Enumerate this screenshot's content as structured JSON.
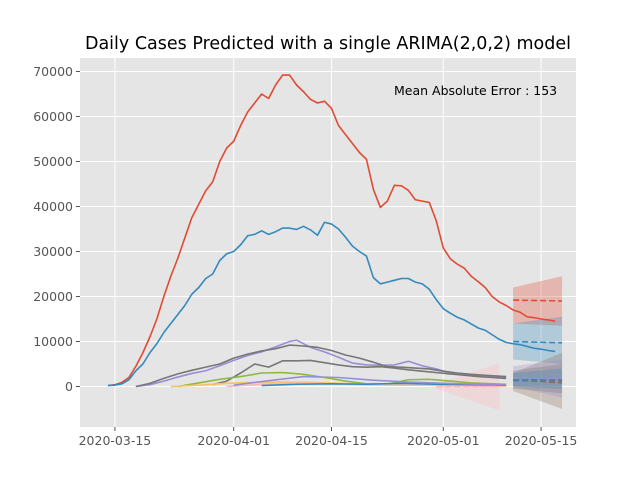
{
  "chart_data": {
    "type": "line",
    "title": "Daily Cases Predicted with a single ARIMA(2,0,2) model",
    "annotation": "Mean Absolute Error : 153",
    "xlabel": "",
    "ylabel": "",
    "x_ticks": [
      "2020-03-15",
      "2020-04-01",
      "2020-04-15",
      "2020-05-01",
      "2020-05-15"
    ],
    "y_ticks": [
      0,
      10000,
      20000,
      30000,
      40000,
      50000,
      60000,
      70000
    ],
    "x_range": [
      "2020-03-10",
      "2020-05-20"
    ],
    "ylim": [
      -9000,
      73000
    ],
    "grid": true,
    "legend": "none",
    "colors": {
      "background": "#e5e5e5",
      "grid": "#ffffff",
      "red": "#e24a33",
      "blue": "#348abd",
      "purple": "#988ed5",
      "gray": "#777777",
      "yellow": "#fbc15e",
      "green": "#8eba42",
      "pink": "#ffb5b8",
      "brown": "#8b6f5a"
    },
    "series": [
      {
        "color": "red",
        "x": [
          "2020-03-14",
          "2020-03-15",
          "2020-03-16",
          "2020-03-17",
          "2020-03-18",
          "2020-03-19",
          "2020-03-20",
          "2020-03-21",
          "2020-03-22",
          "2020-03-23",
          "2020-03-24",
          "2020-03-25",
          "2020-03-26",
          "2020-03-27",
          "2020-03-28",
          "2020-03-29",
          "2020-03-30",
          "2020-03-31",
          "2020-04-01",
          "2020-04-02",
          "2020-04-03",
          "2020-04-04",
          "2020-04-05",
          "2020-04-06",
          "2020-04-07",
          "2020-04-08",
          "2020-04-09",
          "2020-04-10",
          "2020-04-11",
          "2020-04-12",
          "2020-04-13",
          "2020-04-14",
          "2020-04-15",
          "2020-04-16",
          "2020-04-17",
          "2020-04-18",
          "2020-04-19",
          "2020-04-20",
          "2020-04-21",
          "2020-04-22",
          "2020-04-23",
          "2020-04-24",
          "2020-04-25",
          "2020-04-26",
          "2020-04-27",
          "2020-04-28",
          "2020-04-29",
          "2020-04-30",
          "2020-05-01",
          "2020-05-02",
          "2020-05-03",
          "2020-05-04",
          "2020-05-05",
          "2020-05-06",
          "2020-05-07",
          "2020-05-08",
          "2020-05-09",
          "2020-05-10",
          "2020-05-11",
          "2020-05-12",
          "2020-05-13",
          "2020-05-14",
          "2020-05-15",
          "2020-05-16",
          "2020-05-17"
        ],
        "y": [
          200,
          400,
          900,
          2000,
          4500,
          7500,
          11000,
          15000,
          20000,
          24500,
          28500,
          33000,
          37500,
          40500,
          43500,
          45500,
          50000,
          53000,
          54500,
          58000,
          61000,
          63000,
          65000,
          64000,
          67000,
          69200,
          69200,
          67000,
          65500,
          63800,
          63000,
          63400,
          61800,
          58000,
          56000,
          54000,
          52000,
          50500,
          43800,
          39800,
          41200,
          44700,
          44600,
          43600,
          41500,
          41200,
          40900,
          36800,
          30800,
          28400,
          27200,
          26300,
          24500,
          23300,
          22000,
          20000,
          18800,
          18000,
          17000,
          16500,
          15500,
          15300,
          15000,
          14800,
          14500
        ]
      },
      {
        "color": "blue",
        "x": [
          "2020-03-14",
          "2020-03-15",
          "2020-03-16",
          "2020-03-17",
          "2020-03-18",
          "2020-03-19",
          "2020-03-20",
          "2020-03-21",
          "2020-03-22",
          "2020-03-23",
          "2020-03-24",
          "2020-03-25",
          "2020-03-26",
          "2020-03-27",
          "2020-03-28",
          "2020-03-29",
          "2020-03-30",
          "2020-03-31",
          "2020-04-01",
          "2020-04-02",
          "2020-04-03",
          "2020-04-04",
          "2020-04-05",
          "2020-04-06",
          "2020-04-07",
          "2020-04-08",
          "2020-04-09",
          "2020-04-10",
          "2020-04-11",
          "2020-04-12",
          "2020-04-13",
          "2020-04-14",
          "2020-04-15",
          "2020-04-16",
          "2020-04-17",
          "2020-04-18",
          "2020-04-19",
          "2020-04-20",
          "2020-04-21",
          "2020-04-22",
          "2020-04-23",
          "2020-04-24",
          "2020-04-25",
          "2020-04-26",
          "2020-04-27",
          "2020-04-28",
          "2020-04-29",
          "2020-04-30",
          "2020-05-01",
          "2020-05-02",
          "2020-05-03",
          "2020-05-04",
          "2020-05-05",
          "2020-05-06",
          "2020-05-07",
          "2020-05-08",
          "2020-05-09",
          "2020-05-10",
          "2020-05-11",
          "2020-05-12",
          "2020-05-13",
          "2020-05-14",
          "2020-05-15",
          "2020-05-16",
          "2020-05-17"
        ],
        "y": [
          200,
          300,
          600,
          1500,
          3500,
          5000,
          7500,
          9500,
          12000,
          14000,
          16000,
          18000,
          20500,
          22000,
          24000,
          25000,
          28000,
          29500,
          30000,
          31500,
          33500,
          33800,
          34600,
          33800,
          34400,
          35200,
          35200,
          34900,
          35600,
          34800,
          33600,
          36500,
          36100,
          35000,
          33200,
          31200,
          30000,
          29000,
          24200,
          22800,
          23200,
          23600,
          24000,
          24000,
          23200,
          22800,
          21600,
          19300,
          17300,
          16300,
          15400,
          14800,
          13900,
          13000,
          12500,
          11500,
          10500,
          9800,
          9500,
          9300,
          8900,
          8500,
          8300,
          8000,
          7800
        ]
      },
      {
        "color": "purple",
        "x": [
          "2020-03-18",
          "2020-03-20",
          "2020-03-22",
          "2020-03-24",
          "2020-03-26",
          "2020-03-28",
          "2020-03-30",
          "2020-04-01",
          "2020-04-03",
          "2020-04-05",
          "2020-04-07",
          "2020-04-09",
          "2020-04-10",
          "2020-04-12",
          "2020-04-14",
          "2020-04-16",
          "2020-04-18",
          "2020-04-20",
          "2020-04-22",
          "2020-04-24",
          "2020-04-26",
          "2020-04-28",
          "2020-04-30",
          "2020-05-02",
          "2020-05-04",
          "2020-05-06",
          "2020-05-08",
          "2020-05-10"
        ],
        "y": [
          0,
          400,
          1200,
          2100,
          2900,
          3500,
          4600,
          5800,
          6900,
          7700,
          8800,
          10000,
          10300,
          8700,
          7700,
          6500,
          5200,
          4800,
          4700,
          4800,
          5600,
          4600,
          3900,
          3000,
          2700,
          2400,
          2200,
          2100
        ]
      },
      {
        "color": "gray",
        "x": [
          "2020-03-18",
          "2020-03-20",
          "2020-03-22",
          "2020-03-24",
          "2020-03-26",
          "2020-03-28",
          "2020-03-30",
          "2020-04-01",
          "2020-04-03",
          "2020-04-05",
          "2020-04-07",
          "2020-04-09",
          "2020-04-11",
          "2020-04-13",
          "2020-04-15",
          "2020-04-17",
          "2020-04-19",
          "2020-04-21",
          "2020-04-23",
          "2020-04-25",
          "2020-04-27",
          "2020-04-29",
          "2020-05-01",
          "2020-05-03",
          "2020-05-05",
          "2020-05-07",
          "2020-05-09",
          "2020-05-10"
        ],
        "y": [
          0,
          700,
          1800,
          2800,
          3600,
          4300,
          5000,
          6300,
          7200,
          7900,
          8400,
          9200,
          9000,
          8700,
          8000,
          7000,
          6300,
          5400,
          4400,
          4300,
          4100,
          3900,
          3400,
          3000,
          2700,
          2500,
          2300,
          2200
        ]
      },
      {
        "color": "gray",
        "x": [
          "2020-03-29",
          "2020-03-31",
          "2020-04-02",
          "2020-04-04",
          "2020-04-06",
          "2020-04-08",
          "2020-04-10",
          "2020-04-12",
          "2020-04-14",
          "2020-04-16",
          "2020-04-18",
          "2020-04-20",
          "2020-04-22",
          "2020-04-24",
          "2020-04-26",
          "2020-04-28",
          "2020-04-30",
          "2020-05-02",
          "2020-05-04",
          "2020-05-06",
          "2020-05-08",
          "2020-05-10"
        ],
        "y": [
          400,
          1200,
          3000,
          5000,
          4300,
          5700,
          5700,
          5800,
          5300,
          4800,
          4400,
          4300,
          4400,
          4100,
          3700,
          3400,
          3100,
          2800,
          2500,
          2200,
          2000,
          1800
        ]
      },
      {
        "color": "green",
        "x": [
          "2020-03-24",
          "2020-03-27",
          "2020-03-30",
          "2020-04-02",
          "2020-04-05",
          "2020-04-08",
          "2020-04-11",
          "2020-04-14",
          "2020-04-17",
          "2020-04-20",
          "2020-04-23",
          "2020-04-26",
          "2020-04-29",
          "2020-05-02",
          "2020-05-05",
          "2020-05-08",
          "2020-05-10"
        ],
        "y": [
          0,
          800,
          1600,
          2200,
          3000,
          3100,
          2700,
          2000,
          1200,
          600,
          500,
          1500,
          1600,
          1200,
          800,
          600,
          500
        ]
      },
      {
        "color": "yellow",
        "x": [
          "2020-03-23",
          "2020-03-27",
          "2020-03-31",
          "2020-04-04",
          "2020-04-08",
          "2020-04-12",
          "2020-04-16",
          "2020-04-20",
          "2020-04-24",
          "2020-04-28",
          "2020-05-02",
          "2020-05-06",
          "2020-05-10"
        ],
        "y": [
          0,
          300,
          700,
          900,
          1000,
          900,
          700,
          500,
          400,
          300,
          200,
          150,
          100
        ]
      },
      {
        "color": "pink",
        "x": [
          "2020-03-31",
          "2020-04-05",
          "2020-04-10",
          "2020-04-15",
          "2020-04-20",
          "2020-04-25",
          "2020-04-30",
          "2020-05-05",
          "2020-05-10"
        ],
        "y": [
          0,
          500,
          800,
          600,
          400,
          300,
          300,
          200,
          150
        ]
      },
      {
        "color": "blue",
        "x": [
          "2020-04-05",
          "2020-04-10",
          "2020-04-15",
          "2020-04-20",
          "2020-04-25",
          "2020-04-30",
          "2020-05-05",
          "2020-05-10"
        ],
        "y": [
          200,
          500,
          600,
          500,
          700,
          500,
          400,
          300
        ]
      },
      {
        "color": "purple",
        "x": [
          "2020-04-01",
          "2020-04-06",
          "2020-04-11",
          "2020-04-16",
          "2020-04-21",
          "2020-04-26",
          "2020-05-01",
          "2020-05-06",
          "2020-05-10"
        ],
        "y": [
          300,
          1300,
          2200,
          2000,
          1400,
          1000,
          700,
          500,
          400
        ]
      }
    ],
    "forecasts": [
      {
        "color": "red",
        "x": [
          "2020-05-11",
          "2020-05-18"
        ],
        "y": [
          19200,
          19000
        ],
        "lower": [
          14000,
          13500
        ],
        "upper": [
          22000,
          24500
        ]
      },
      {
        "color": "blue",
        "x": [
          "2020-05-11",
          "2020-05-18"
        ],
        "y": [
          10000,
          9700
        ],
        "lower": [
          6000,
          5000
        ],
        "upper": [
          14000,
          15500
        ]
      },
      {
        "color": "pink",
        "x": [
          "2020-04-30",
          "2020-05-09"
        ],
        "y": [
          0,
          0
        ],
        "lower": [
          -500,
          -5300
        ],
        "upper": [
          500,
          5200
        ]
      },
      {
        "color": "brown",
        "x": [
          "2020-05-11",
          "2020-05-18"
        ],
        "y": [
          1500,
          800
        ],
        "lower": [
          -1000,
          -5000
        ],
        "upper": [
          3000,
          7500
        ]
      },
      {
        "color": "purple",
        "x": [
          "2020-05-11",
          "2020-05-18"
        ],
        "y": [
          2000,
          1800
        ],
        "lower": [
          0,
          -2500
        ],
        "upper": [
          4500,
          6000
        ]
      },
      {
        "color": "gray",
        "x": [
          "2020-05-11",
          "2020-05-18"
        ],
        "y": [
          1300,
          1200
        ],
        "lower": [
          -500,
          -1500
        ],
        "upper": [
          3500,
          5000
        ]
      },
      {
        "color": "blue",
        "x": [
          "2020-05-11",
          "2020-05-18"
        ],
        "y": [
          1500,
          1500
        ],
        "lower": [
          0,
          -500
        ],
        "upper": [
          3000,
          4000
        ]
      }
    ]
  }
}
